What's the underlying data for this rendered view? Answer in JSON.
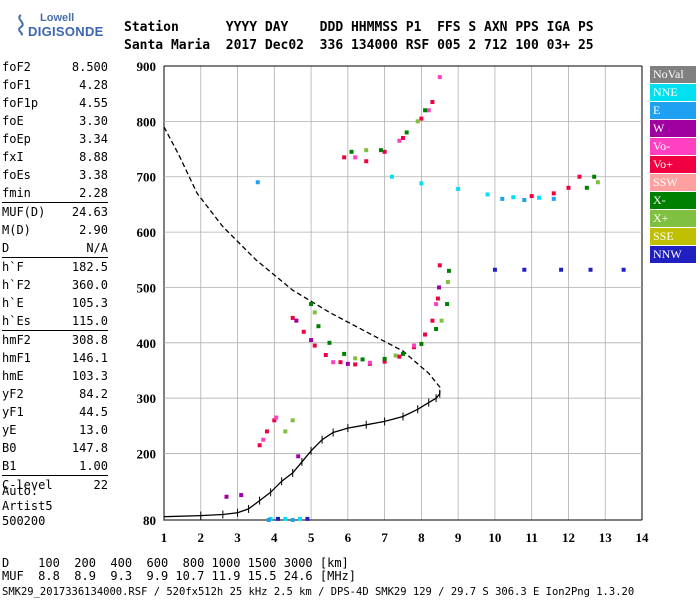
{
  "logo": {
    "line1": "Lowell",
    "line2": "DIGISONDE"
  },
  "header": {
    "line1": "Station      YYYY DAY    DDD HHMMSS P1  FFS S AXN PPS IGA PS",
    "line2": "Santa Maria  2017 Dec02  336 134000 RSF 005 2 712 100 03+ 25"
  },
  "params": [
    {
      "name": "foF2",
      "value": "8.500"
    },
    {
      "name": "foF1",
      "value": "4.28"
    },
    {
      "name": "foF1p",
      "value": "4.55"
    },
    {
      "name": "foE",
      "value": "3.30"
    },
    {
      "name": "foEp",
      "value": "3.34"
    },
    {
      "name": "fxI",
      "value": "8.88"
    },
    {
      "name": "foEs",
      "value": "3.38"
    },
    {
      "name": "fmin",
      "value": "2.28"
    },
    {
      "name": "MUF(D)",
      "value": "24.63"
    },
    {
      "name": "M(D)",
      "value": "2.90"
    },
    {
      "name": "D",
      "value": "N/A"
    },
    {
      "name": "h`F",
      "value": "182.5"
    },
    {
      "name": "h`F2",
      "value": "360.0"
    },
    {
      "name": "h`E",
      "value": "105.3"
    },
    {
      "name": "h`Es",
      "value": "115.0"
    },
    {
      "name": "hmF2",
      "value": "308.8"
    },
    {
      "name": "hmF1",
      "value": "146.1"
    },
    {
      "name": "hmE",
      "value": "103.3"
    },
    {
      "name": "yF2",
      "value": "84.2"
    },
    {
      "name": "yF1",
      "value": "44.5"
    },
    {
      "name": "yE",
      "value": "13.0"
    },
    {
      "name": "B0",
      "value": "147.8"
    },
    {
      "name": "B1",
      "value": "1.00"
    },
    {
      "name": "C-level",
      "value": "22"
    }
  ],
  "auto": {
    "line1": "Auto:",
    "line2": "Artist5",
    "line3": "500200"
  },
  "legend": [
    {
      "label": "NoVal",
      "color": "#808080"
    },
    {
      "label": "NNE",
      "color": "#00e0f0"
    },
    {
      "label": "E",
      "color": "#20a0f0"
    },
    {
      "label": "W",
      "color": "#a000a0"
    },
    {
      "label": "Vo-",
      "color": "#ff40c0"
    },
    {
      "label": "Vo+",
      "color": "#f00040"
    },
    {
      "label": "SSW",
      "color": "#ffa0a0"
    },
    {
      "label": "X-",
      "color": "#008000"
    },
    {
      "label": "X+",
      "color": "#80c040"
    },
    {
      "label": "SSE",
      "color": "#c0c000"
    },
    {
      "label": "NNW",
      "color": "#2020c0"
    }
  ],
  "footer": {
    "line1": "D    100  200  400  600  800 1000 1500 3000 [km]",
    "line2": "MUF  8.8  8.9  9.3  9.9 10.7 11.9 15.5 24.6 [MHz]",
    "file": "SMK29_2017336134000.RSF / 520fx512h 25 kHz 2.5 km / DPS-4D SMK29 129 / 29.7 S 306.3 E Ion2Png 1.3.20"
  },
  "chart_data": {
    "type": "scatter",
    "x": {
      "range": [
        1,
        14
      ],
      "ticks": [
        "1",
        "2",
        "3",
        "4",
        "5",
        "6",
        "7",
        "8",
        "9",
        "10",
        "11",
        "12",
        "13",
        "14"
      ]
    },
    "y": {
      "range": [
        80,
        900
      ],
      "ticks": [
        "80",
        "200",
        "300",
        "400",
        "500",
        "600",
        "700",
        "800",
        "900"
      ]
    },
    "grid": true,
    "series": [
      {
        "name": "Vo+",
        "color": "#f00040",
        "points": [
          [
            4.5,
            445
          ],
          [
            4.8,
            420
          ],
          [
            5.1,
            395
          ],
          [
            5.4,
            378
          ],
          [
            5.8,
            365
          ],
          [
            6.2,
            361
          ],
          [
            6.6,
            362
          ],
          [
            7.0,
            366
          ],
          [
            7.4,
            375
          ],
          [
            7.8,
            392
          ],
          [
            8.1,
            415
          ],
          [
            8.3,
            440
          ],
          [
            8.45,
            480
          ],
          [
            8.5,
            540
          ],
          [
            5.9,
            735
          ],
          [
            6.5,
            728
          ],
          [
            7.0,
            745
          ],
          [
            7.5,
            770
          ],
          [
            8.0,
            805
          ],
          [
            8.3,
            835
          ],
          [
            11.0,
            665
          ],
          [
            11.6,
            670
          ],
          [
            12.0,
            680
          ],
          [
            12.3,
            700
          ],
          [
            3.6,
            215
          ],
          [
            3.8,
            240
          ],
          [
            4.0,
            260
          ]
        ]
      },
      {
        "name": "Vo-",
        "color": "#ff40c0",
        "points": [
          [
            5.6,
            365
          ],
          [
            6.6,
            364
          ],
          [
            7.8,
            395
          ],
          [
            8.4,
            470
          ],
          [
            6.2,
            735
          ],
          [
            7.4,
            765
          ],
          [
            8.2,
            820
          ],
          [
            8.5,
            880
          ],
          [
            3.7,
            225
          ],
          [
            4.05,
            265
          ]
        ]
      },
      {
        "name": "W",
        "color": "#a000a0",
        "points": [
          [
            4.6,
            440
          ],
          [
            5.0,
            405
          ],
          [
            6.0,
            362
          ],
          [
            8.48,
            500
          ],
          [
            4.65,
            195
          ],
          [
            2.7,
            122
          ],
          [
            3.1,
            125
          ]
        ]
      },
      {
        "name": "X-",
        "color": "#008000",
        "points": [
          [
            5.0,
            470
          ],
          [
            5.2,
            430
          ],
          [
            5.5,
            400
          ],
          [
            5.9,
            380
          ],
          [
            6.4,
            370
          ],
          [
            7.0,
            371
          ],
          [
            7.5,
            380
          ],
          [
            8.0,
            398
          ],
          [
            8.4,
            425
          ],
          [
            8.7,
            470
          ],
          [
            8.75,
            530
          ],
          [
            6.1,
            745
          ],
          [
            6.9,
            748
          ],
          [
            7.6,
            780
          ],
          [
            8.1,
            820
          ],
          [
            12.5,
            680
          ],
          [
            12.7,
            700
          ]
        ]
      },
      {
        "name": "X+",
        "color": "#80c040",
        "points": [
          [
            5.1,
            455
          ],
          [
            6.2,
            372
          ],
          [
            7.3,
            377
          ],
          [
            8.55,
            440
          ],
          [
            8.72,
            510
          ],
          [
            6.5,
            748
          ],
          [
            7.9,
            800
          ],
          [
            12.8,
            690
          ],
          [
            4.3,
            240
          ],
          [
            4.5,
            260
          ]
        ]
      },
      {
        "name": "NNE",
        "color": "#00e0f0",
        "points": [
          [
            7.2,
            700
          ],
          [
            8.0,
            688
          ],
          [
            9.0,
            678
          ],
          [
            9.8,
            668
          ],
          [
            10.5,
            663
          ],
          [
            11.2,
            662
          ],
          [
            3.9,
            82
          ],
          [
            4.3,
            82
          ],
          [
            4.7,
            82
          ]
        ]
      },
      {
        "name": "E",
        "color": "#20a0f0",
        "points": [
          [
            10.2,
            660
          ],
          [
            10.8,
            658
          ],
          [
            11.6,
            660
          ],
          [
            3.85,
            80
          ],
          [
            4.5,
            80
          ],
          [
            3.55,
            690
          ]
        ]
      },
      {
        "name": "NNW",
        "color": "#2020c0",
        "points": [
          [
            10.0,
            532
          ],
          [
            10.8,
            532
          ],
          [
            11.8,
            532
          ],
          [
            12.6,
            532
          ],
          [
            13.5,
            532
          ],
          [
            4.1,
            82
          ],
          [
            4.9,
            82
          ]
        ]
      }
    ],
    "profile_solid": [
      [
        1.0,
        86
      ],
      [
        2.0,
        88
      ],
      [
        2.6,
        90
      ],
      [
        3.0,
        93
      ],
      [
        3.3,
        100
      ],
      [
        3.6,
        115
      ],
      [
        3.9,
        130
      ],
      [
        4.2,
        150
      ],
      [
        4.5,
        165
      ],
      [
        4.75,
        185
      ],
      [
        5.0,
        205
      ],
      [
        5.3,
        225
      ],
      [
        5.6,
        238
      ],
      [
        6.0,
        246
      ],
      [
        6.5,
        252
      ],
      [
        7.0,
        258
      ],
      [
        7.5,
        267
      ],
      [
        7.9,
        280
      ],
      [
        8.2,
        292
      ],
      [
        8.4,
        300
      ],
      [
        8.5,
        308
      ]
    ],
    "profile_dashed": [
      [
        1.0,
        790
      ],
      [
        1.4,
        740
      ],
      [
        1.9,
        670
      ],
      [
        2.6,
        610
      ],
      [
        3.5,
        550
      ],
      [
        4.5,
        495
      ],
      [
        5.5,
        455
      ],
      [
        6.5,
        420
      ],
      [
        7.5,
        385
      ],
      [
        8.2,
        345
      ],
      [
        8.5,
        320
      ],
      [
        8.5,
        308
      ]
    ]
  }
}
